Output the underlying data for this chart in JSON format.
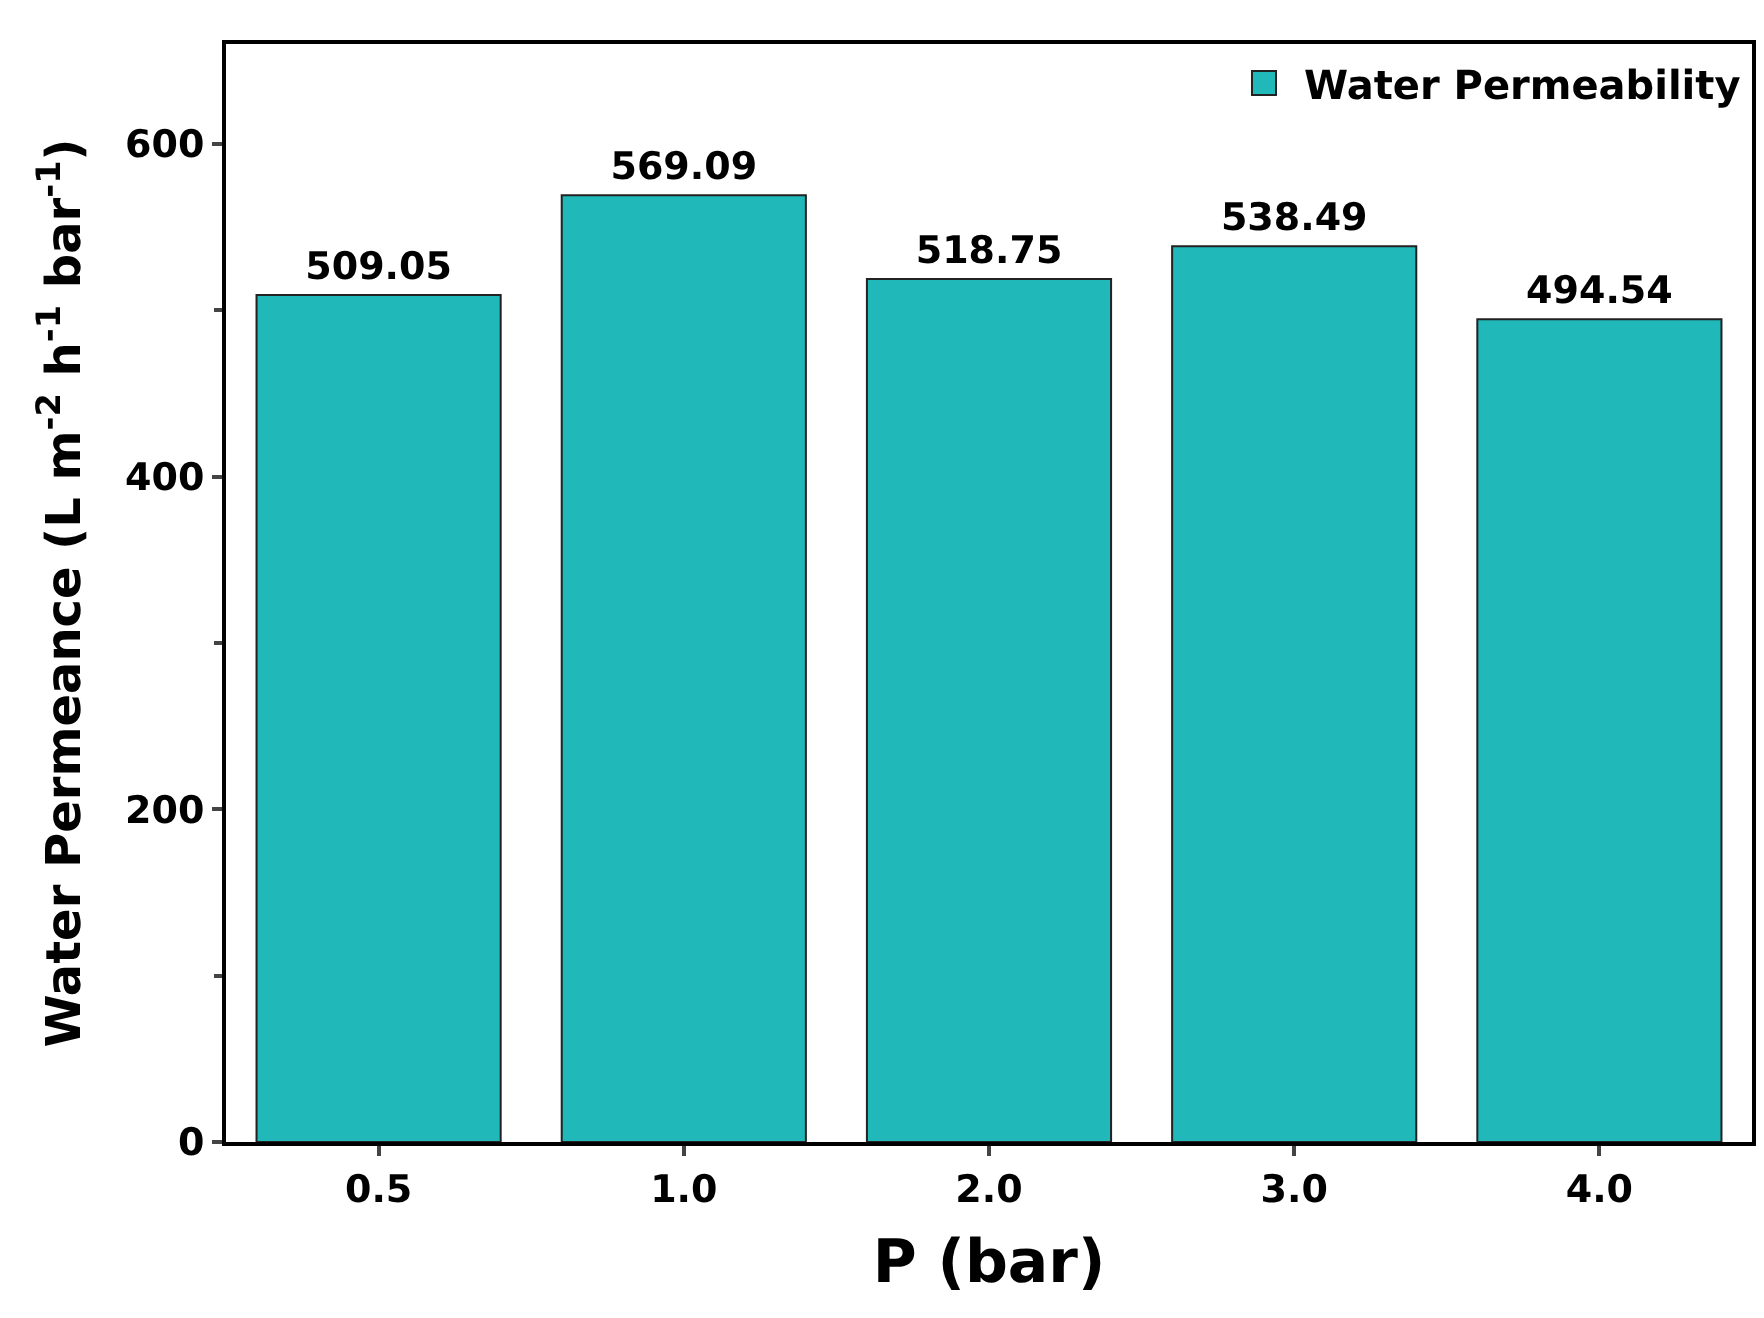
{
  "chart_data": {
    "type": "bar",
    "xlabel": "P (bar)",
    "ylabel": "Water Permeance (L m$^{-2}$ h$^{-1}$ bar$^{-1}$)",
    "categories": [
      "0.5",
      "1.0",
      "2.0",
      "3.0",
      "4.0"
    ],
    "series": [
      {
        "name": "Water Permeability",
        "color": "#20b8b8",
        "values": [
          509.05,
          569.09,
          518.75,
          538.49,
          494.54
        ]
      }
    ],
    "data_labels": true,
    "ylim": [
      0,
      660
    ],
    "yticks": [
      0,
      200,
      400,
      600
    ],
    "legend": "top right"
  }
}
